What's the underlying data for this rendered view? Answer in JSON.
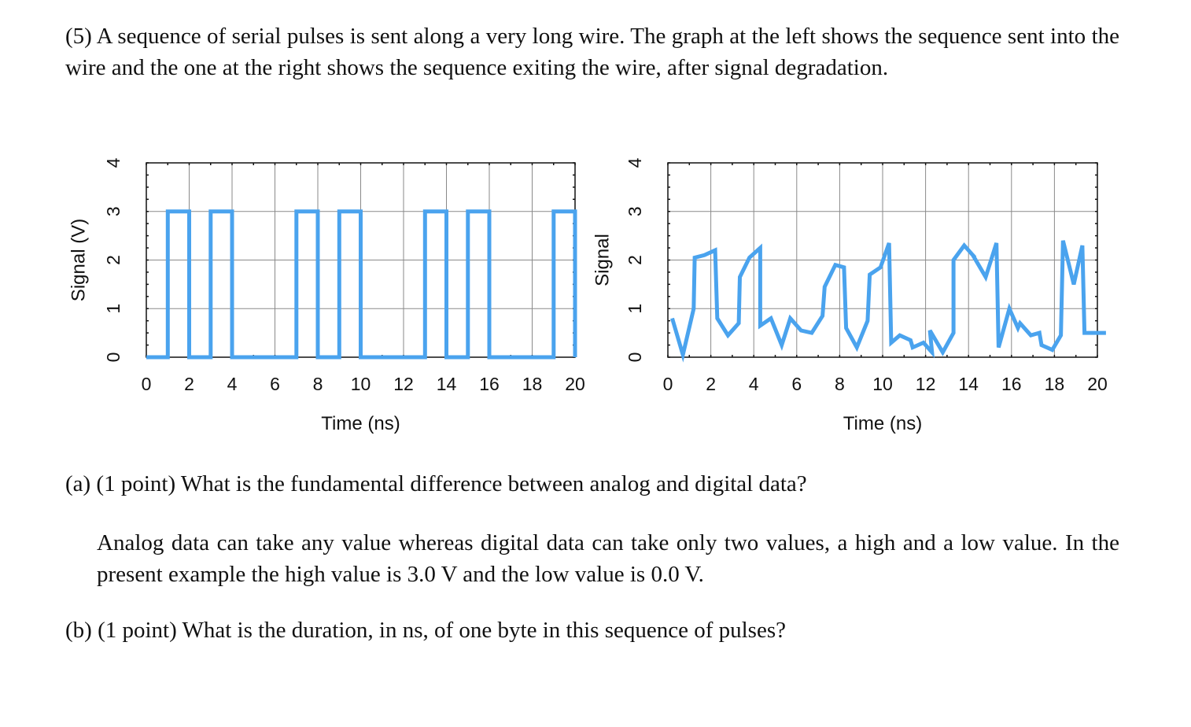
{
  "problem": {
    "intro": "(5)  A sequence of serial pulses is sent along a very long wire.  The graph at the left shows the sequence sent into the wire and the one at the right shows the sequence exiting the wire, after signal degradation."
  },
  "questions": [
    {
      "text": "(a) (1 point)  What is the fundamental difference between analog and digital data?"
    },
    {
      "text": "(b) (1 point)  What is the duration, in ns, of one byte in this sequence of pulses?"
    }
  ],
  "answers": {
    "a": "Analog data can take any value whereas digital data can take only two values, a high and a low value.  In the present example the high value is 3.0 V and the low value is 0.0 V."
  },
  "colors": {
    "series": "#4aa3ee",
    "grid": "#8a8a8a",
    "axis": "#111111"
  },
  "chart_data": [
    {
      "type": "line",
      "title": "",
      "xlabel": "Time (ns)",
      "ylabel": "Signal (V)",
      "xlim": [
        0,
        20
      ],
      "ylim": [
        0,
        4
      ],
      "xticks": [
        "0",
        "2",
        "4",
        "6",
        "8",
        "10",
        "12",
        "14",
        "16",
        "18",
        "20"
      ],
      "yticks": [
        "0",
        "1",
        "2",
        "3",
        "4"
      ],
      "grid": true,
      "series": [
        {
          "x": [
            0,
            1,
            1,
            2,
            2,
            3,
            3,
            4,
            4,
            7,
            7,
            8,
            8,
            9,
            9,
            10,
            10,
            13,
            13,
            14,
            14,
            15,
            15,
            16,
            16,
            19,
            19,
            20,
            20
          ],
          "y": [
            0,
            0,
            3,
            3,
            0,
            0,
            3,
            3,
            0,
            0,
            3,
            3,
            0,
            0,
            3,
            3,
            0,
            0,
            3,
            3,
            0,
            0,
            3,
            3,
            0,
            0,
            3,
            3,
            0
          ]
        }
      ]
    },
    {
      "type": "line",
      "title": "",
      "xlabel": "Time (ns)",
      "ylabel": "Signal",
      "xlim": [
        0,
        20
      ],
      "ylim": [
        0,
        4
      ],
      "xticks": [
        "0",
        "2",
        "4",
        "6",
        "8",
        "10",
        "12",
        "14",
        "16",
        "18",
        "20"
      ],
      "yticks": [
        "0",
        "1",
        "2",
        "3",
        "4"
      ],
      "grid": true,
      "series": [
        {
          "x": [
            0.2,
            0.7,
            1.2,
            1.25,
            1.7,
            2.2,
            2.3,
            2.8,
            3.3,
            3.35,
            3.8,
            4.3,
            4.3,
            4.8,
            5.3,
            5.7,
            6.2,
            6.7,
            7.2,
            7.3,
            7.8,
            8.2,
            8.3,
            8.8,
            9.3,
            9.4,
            9.9,
            10.3,
            10.4,
            10.8,
            11.3,
            11.4,
            11.9,
            12.3,
            12.2,
            12.8,
            13.3,
            13.3,
            13.8,
            14.3,
            14.2,
            14.8,
            15.3,
            15.4,
            15.9,
            16.3,
            16.4,
            16.9,
            17.3,
            17.4,
            17.9,
            18.3,
            18.4,
            18.9,
            19.3,
            19.4,
            19.9,
            20.3,
            20.4
          ],
          "y": [
            0.8,
            0.05,
            1.0,
            2.05,
            2.1,
            2.2,
            0.8,
            0.45,
            0.7,
            1.65,
            2.05,
            2.25,
            0.65,
            0.8,
            0.25,
            0.8,
            0.55,
            0.5,
            0.85,
            1.45,
            1.9,
            1.85,
            0.6,
            0.2,
            0.75,
            1.7,
            1.85,
            2.35,
            0.3,
            0.45,
            0.35,
            0.2,
            0.3,
            0.1,
            0.55,
            0.1,
            0.5,
            2.0,
            2.3,
            2.05,
            2.1,
            1.65,
            2.35,
            0.2,
            1.0,
            0.6,
            0.7,
            0.45,
            0.5,
            0.25,
            0.15,
            0.45,
            2.4,
            1.5,
            2.3,
            0.5,
            0.5,
            0.5,
            0.5
          ]
        }
      ]
    }
  ]
}
